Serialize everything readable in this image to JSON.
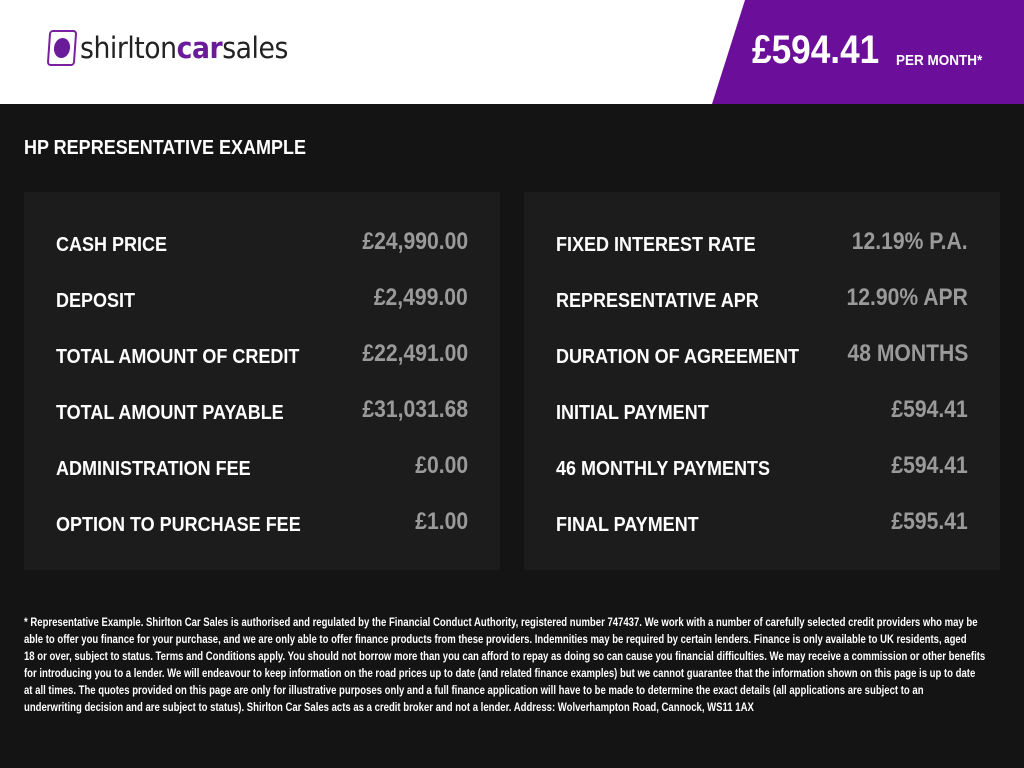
{
  "brand": {
    "name_plain": "shirlton",
    "name_accent": "car",
    "name_end": "sales",
    "accent_color": "#6b0f9a"
  },
  "header": {
    "price": "£594.41",
    "per_month": "PER MONTH*"
  },
  "section_title": "HP REPRESENTATIVE EXAMPLE",
  "left_rows": [
    {
      "label": "CASH PRICE",
      "value": "£24,990.00"
    },
    {
      "label": "DEPOSIT",
      "value": "£2,499.00"
    },
    {
      "label": "TOTAL AMOUNT OF CREDIT",
      "value": "£22,491.00"
    },
    {
      "label": "TOTAL AMOUNT PAYABLE",
      "value": "£31,031.68"
    },
    {
      "label": "ADMINISTRATION FEE",
      "value": "£0.00"
    },
    {
      "label": "OPTION TO PURCHASE FEE",
      "value": "£1.00"
    }
  ],
  "right_rows": [
    {
      "label": "FIXED INTEREST RATE",
      "value": "12.19% P.A."
    },
    {
      "label": "REPRESENTATIVE APR",
      "value": "12.90% APR"
    },
    {
      "label": "DURATION OF AGREEMENT",
      "value": "48 MONTHS"
    },
    {
      "label": "INITIAL PAYMENT",
      "value": "£594.41"
    },
    {
      "label": "46 MONTHLY PAYMENTS",
      "value": "£594.41"
    },
    {
      "label": "FINAL PAYMENT",
      "value": "£595.41"
    }
  ],
  "disclaimer_lines": [
    "* Representative Example. Shirlton Car Sales is authorised and regulated by the Financial Conduct Authority, registered number 747437. We work with a number of carefully selected credit providers who may be",
    "able to offer you finance for your purchase, and we are only able to offer finance products from these providers. Indemnities may be required by certain lenders. Finance is only available to UK residents, aged",
    "18 or over, subject to status. Terms and Conditions apply. You should not borrow more than you can afford to repay as doing so can cause you financial difficulties. We may receive a commission or other benefits",
    "for introducing you to a lender. We will endeavour to keep information on the road prices up to date (and related finance examples) but we cannot guarantee that the information shown on this page is up to date",
    "at all times. The quotes provided on this page are only for illustrative purposes only and a full finance application will have to be made to determine the exact details (all applications are subject to an",
    "underwriting decision and are subject to status). Shirlton Car Sales acts as a credit broker and not a lender. Address: Wolverhampton Road, Cannock, WS11 1AX"
  ]
}
